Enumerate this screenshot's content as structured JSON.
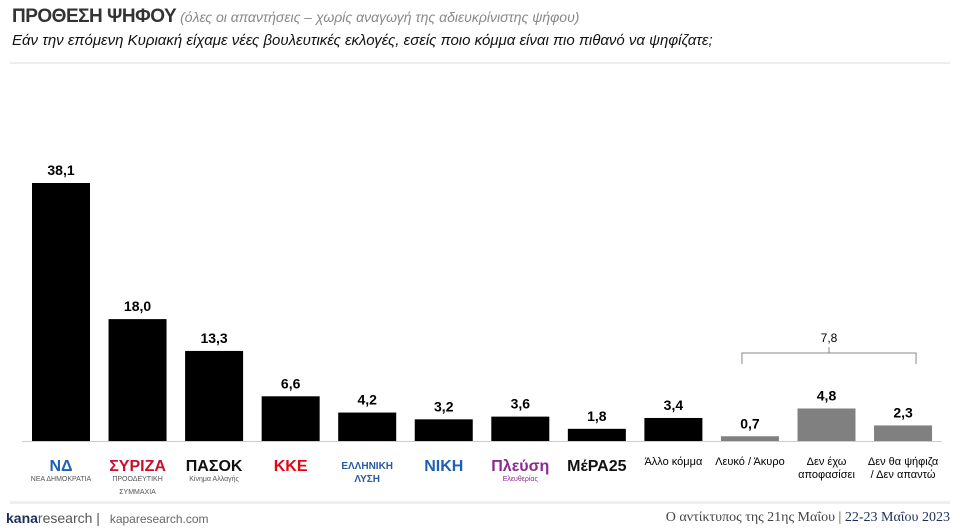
{
  "header": {
    "title": "ΠΡΟΘΕΣΗ ΨΗΦΟΥ",
    "subtitle": "(όλες οι απαντήσεις – χωρίς αναγωγή της αδιευκρίνιστης ψήφου)",
    "question": "Εάν την επόμενη Κυριακή είχαμε νέες βουλευτικές εκλογές, εσείς ποιο κόμμα είναι πιο πιθανό να ψηφίζατε;"
  },
  "chart_data": {
    "type": "bar",
    "categories": [
      "ΝΔ Νέα Δημοκρατία",
      "ΣΥΡΙΖΑ Προοδευτική Συμμαχία",
      "ΠΑΣΟΚ Κίνημα Αλλαγής",
      "ΚΚΕ",
      "Ελληνική Λύση",
      "ΝΙΚΗ",
      "Πλεύση Ελευθερίας",
      "ΜέΡΑ25",
      "Άλλο κόμμα",
      "Λευκό / Άκυρο",
      "Δεν έχω αποφασίσει",
      "Δεν θα ψήφιζα / Δεν απαντώ"
    ],
    "values": [
      38.1,
      18.0,
      13.3,
      6.6,
      4.2,
      3.2,
      3.6,
      1.8,
      3.4,
      0.7,
      4.8,
      2.3
    ],
    "labels": [
      "38,1",
      "18,0",
      "13,3",
      "6,6",
      "4,2",
      "3,2",
      "3,6",
      "1,8",
      "3,4",
      "0,7",
      "4,8",
      "2,3"
    ],
    "colors": [
      "#000000",
      "#000000",
      "#000000",
      "#000000",
      "#000000",
      "#000000",
      "#000000",
      "#000000",
      "#000000",
      "#808080",
      "#808080",
      "#808080"
    ],
    "bracket": {
      "label": "7,8",
      "value": 7.8,
      "spans": [
        "Λευκό / Άκυρο",
        "Δεν θα ψήφιζα / Δεν απαντώ"
      ]
    },
    "ylim": [
      0,
      40
    ],
    "grid": false,
    "legend": "none"
  },
  "logos": [
    {
      "text": "ΝΔ",
      "small": "ΝΕΑ ΔΗΜΟΚΡΑΤΙΑ",
      "color": "#1f5fb4"
    },
    {
      "text": "ΣΥΡΙΖΑ",
      "small": "ΠΡΟΟΔΕΥΤΙΚΗ ΣΥΜΜΑΧΙΑ",
      "color": "#c8102e"
    },
    {
      "text": "ΠΑΣΟΚ",
      "small": "Κίνημα Αλλαγής",
      "color": "#111"
    },
    {
      "text": "ΚΚΕ",
      "small": "",
      "color": "#e30613"
    },
    {
      "text": "ΕΛΛΗΝΙΚΗ ΛΥΣΗ",
      "small": "",
      "color": "#2a5aa0"
    },
    {
      "text": "ΝΙΚΗ",
      "small": "",
      "color": "#1f5fb4"
    },
    {
      "text": "Πλεύση",
      "small": "Ελευθερίας",
      "color": "#8a2b8f"
    },
    {
      "text": "ΜέΡΑ25",
      "small": "",
      "color": "#111"
    },
    {
      "text": "Άλλο κόμμα",
      "small": "",
      "color": "#000"
    },
    {
      "text": "Λευκό / Άκυρο",
      "small": "",
      "color": "#000"
    },
    {
      "text": "Δεν έχω αποφασίσει",
      "small": "",
      "color": "#000"
    },
    {
      "text": "Δεν θα ψήφιζα / Δεν απαντώ",
      "small": "",
      "color": "#000"
    }
  ],
  "footer": {
    "brand_bold": "kana",
    "brand_rest": "research",
    "url": "kaparesearch.com",
    "note": "Ο αντίκτυπος της 21ης Μαΐου | ",
    "date": "22-23 Μαΐου 2023"
  }
}
